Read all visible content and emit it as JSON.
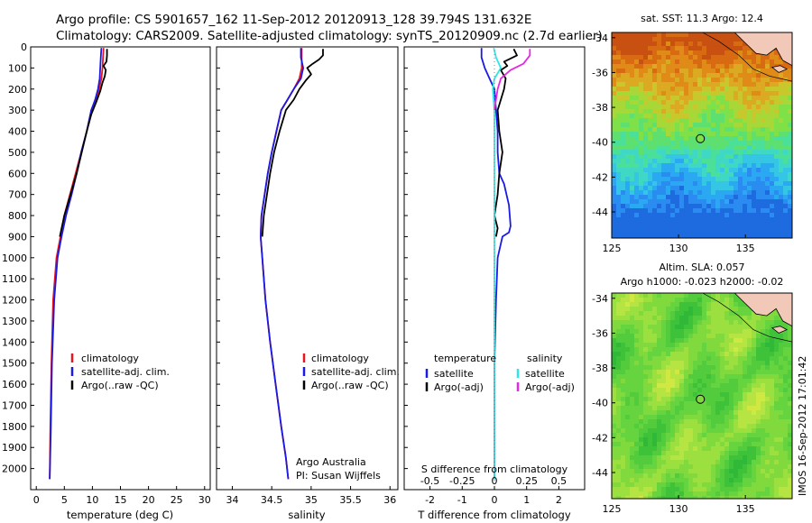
{
  "header": {
    "line1": "Argo profile: CS 5901657_162 11-Sep-2012 20120913_128 39.794S 131.632E",
    "line2": "Climatology: CARS2009. Satellite-adjusted climatology: synTS_20120909.nc (2.7d earlier)"
  },
  "watermark": "IMOS 16-Sep-2012 17:01:42",
  "colors": {
    "climatology": "#e8141e",
    "satellite": "#1a1ae6",
    "argo": "#000000",
    "salinity_satellite": "#2ee6e6",
    "salinity_argo": "#e628e6"
  },
  "chart_data": [
    {
      "type": "line",
      "id": "temperature",
      "xlabel": "temperature (deg C)",
      "xlim": [
        -1,
        31
      ],
      "ylim": [
        2100,
        0
      ],
      "xticks": [
        0,
        5,
        10,
        15,
        20,
        25,
        30
      ],
      "yticks": [
        0,
        100,
        200,
        300,
        400,
        500,
        600,
        700,
        800,
        900,
        1000,
        1100,
        1200,
        1300,
        1400,
        1500,
        1600,
        1700,
        1800,
        1900,
        2000
      ],
      "legend": {
        "position": "center-bottom",
        "entries": [
          "climatology",
          "satellite-adj. clim.",
          "Argo(..raw -QC)"
        ]
      },
      "series": [
        {
          "name": "climatology",
          "color": "#e8141e",
          "x": [
            12.0,
            11.9,
            11.8,
            11.6,
            11.2,
            10.6,
            9.8,
            9.0,
            8.0,
            7.0,
            6.0,
            5.0,
            4.3,
            3.6,
            3.0,
            2.7,
            2.5,
            2.4
          ],
          "y": [
            5,
            50,
            100,
            150,
            200,
            250,
            300,
            400,
            500,
            600,
            700,
            800,
            900,
            1000,
            1200,
            1500,
            1800,
            2050
          ]
        },
        {
          "name": "satellite-adj. clim.",
          "color": "#1a1ae6",
          "x": [
            11.6,
            11.5,
            11.4,
            11.3,
            11.0,
            10.5,
            9.8,
            9.0,
            8.0,
            7.2,
            6.3,
            5.3,
            4.5,
            3.8,
            3.2,
            2.8,
            2.6,
            2.4
          ],
          "y": [
            5,
            50,
            100,
            150,
            200,
            250,
            300,
            400,
            500,
            600,
            700,
            800,
            900,
            1000,
            1200,
            1500,
            1800,
            2050
          ]
        },
        {
          "name": "Argo(..raw -QC)",
          "color": "#000000",
          "x": [
            12.6,
            12.6,
            12.5,
            12.0,
            12.4,
            12.2,
            11.8,
            11.4,
            10.7,
            9.8,
            9.0,
            8.1,
            7.2,
            6.1,
            5.0,
            4.2
          ],
          "y": [
            10,
            40,
            70,
            90,
            110,
            140,
            170,
            210,
            260,
            320,
            400,
            500,
            600,
            700,
            800,
            900
          ]
        }
      ]
    },
    {
      "type": "line",
      "id": "salinity",
      "xlabel": "salinity",
      "xlim": [
        33.8,
        36.1
      ],
      "ylim": [
        2100,
        0
      ],
      "xticks": [
        34,
        34.5,
        35,
        35.5,
        36
      ],
      "xticklabels": [
        "34",
        "34.5",
        "35",
        "35.5",
        "36"
      ],
      "legend": {
        "position": "center-bottom",
        "entries": [
          "climatology",
          "satellite-adj. clim.",
          "Argo(..raw -QC)"
        ]
      },
      "annotation": [
        "Argo Australia",
        "PI: Susan Wijffels"
      ],
      "series": [
        {
          "name": "climatology",
          "color": "#e8141e",
          "x": [
            34.88,
            34.88,
            34.88,
            34.85,
            34.78,
            34.7,
            34.62,
            34.56,
            34.5,
            34.45,
            34.41,
            34.37,
            34.36,
            34.38,
            34.42,
            34.48,
            34.55,
            34.62,
            34.68,
            34.71
          ],
          "y": [
            5,
            50,
            100,
            150,
            200,
            250,
            300,
            400,
            500,
            600,
            700,
            800,
            900,
            1000,
            1200,
            1400,
            1600,
            1800,
            1950,
            2050
          ]
        },
        {
          "name": "satellite-adj. clim.",
          "color": "#1a1ae6",
          "x": [
            34.87,
            34.87,
            34.9,
            34.87,
            34.78,
            34.7,
            34.62,
            34.56,
            34.5,
            34.45,
            34.41,
            34.37,
            34.36,
            34.38,
            34.42,
            34.48,
            34.55,
            34.62,
            34.68,
            34.71
          ],
          "y": [
            5,
            50,
            100,
            150,
            200,
            250,
            300,
            400,
            500,
            600,
            700,
            800,
            900,
            1000,
            1200,
            1400,
            1600,
            1800,
            1950,
            2050
          ]
        },
        {
          "name": "Argo(..raw -QC)",
          "color": "#000000",
          "x": [
            35.15,
            35.15,
            35.1,
            35.02,
            34.95,
            35.0,
            34.93,
            34.85,
            34.78,
            34.68,
            34.6,
            34.53,
            34.48,
            34.44,
            34.4,
            34.38
          ],
          "y": [
            10,
            40,
            60,
            80,
            100,
            130,
            160,
            200,
            250,
            300,
            400,
            500,
            600,
            700,
            800,
            900
          ]
        }
      ]
    },
    {
      "type": "line",
      "id": "difference",
      "xlabel_bottom": "T difference from climatology",
      "xlabel_top": "S difference from climatology",
      "xlim": [
        -2.8,
        2.8
      ],
      "ylim": [
        2100,
        0
      ],
      "xticks_T": [
        -2,
        -1,
        0,
        1,
        2
      ],
      "xticklabels_S": [
        "-0.5",
        "-0.25",
        "0",
        "0.25",
        "0.5"
      ],
      "xticks_S_positions": [
        -2,
        -1,
        0,
        1,
        2
      ],
      "legend": {
        "position": "center-bottom",
        "temperature_header": "temperature",
        "salinity_header": "salinity",
        "temperature_entries": [
          "satellite",
          "Argo(-adj)"
        ],
        "salinity_entries": [
          "satellite",
          "Argo(-adj)"
        ]
      },
      "series": [
        {
          "name": "temperature satellite",
          "color": "#1a1ae6",
          "x": [
            -0.4,
            -0.4,
            -0.3,
            -0.15,
            0.0,
            0.05,
            0.1,
            0.1,
            0.15,
            0.3,
            0.45,
            0.5,
            0.45,
            0.25,
            0.1,
            0.05,
            0.0,
            0.0
          ],
          "y": [
            5,
            50,
            100,
            150,
            200,
            300,
            400,
            500,
            600,
            650,
            750,
            850,
            880,
            900,
            1000,
            1200,
            1500,
            2050
          ]
        },
        {
          "name": "temperature Argo(-adj)",
          "color": "#000000",
          "x": [
            0.6,
            0.7,
            0.3,
            0.4,
            0.2,
            0.35,
            0.3,
            0.1,
            0.15,
            0.25,
            0.15,
            0.1,
            0.0,
            0.1,
            0.05
          ],
          "y": [
            10,
            40,
            70,
            90,
            110,
            150,
            200,
            300,
            400,
            500,
            600,
            700,
            800,
            860,
            900
          ]
        },
        {
          "name": "salinity satellite",
          "color": "#2ee6e6",
          "x": [
            -0.02,
            0.05,
            0.2,
            0.0,
            -0.05,
            0.0,
            0.0,
            0.0,
            0.0,
            0.0,
            0.0
          ],
          "y": [
            5,
            50,
            100,
            150,
            200,
            300,
            600,
            900,
            1200,
            1600,
            2050
          ]
        },
        {
          "name": "salinity Argo(-adj)",
          "color": "#e628e6",
          "x": [
            1.1,
            1.1,
            0.9,
            0.5,
            0.2,
            0.1,
            0.0
          ],
          "y": [
            10,
            40,
            80,
            110,
            150,
            200,
            300
          ]
        }
      ]
    },
    {
      "type": "heatmap",
      "id": "sst_map",
      "title": "sat. SST: 11.3 Argo: 12.4",
      "xlim": [
        125,
        138.5
      ],
      "ylim": [
        -45.5,
        -33.7
      ],
      "xticks": [
        125,
        130,
        135
      ],
      "yticks": [
        -34,
        -36,
        -38,
        -40,
        -42,
        -44
      ],
      "argo_position": {
        "lon": 131.632,
        "lat": -39.794
      }
    },
    {
      "type": "heatmap",
      "id": "sla_map",
      "title_line1": "Altim. SLA: 0.057",
      "title_line2": "Argo h1000: -0.023 h2000: -0.02",
      "xlim": [
        125,
        138.5
      ],
      "ylim": [
        -45.5,
        -33.7
      ],
      "xticks": [
        125,
        130,
        135
      ],
      "yticks": [
        -34,
        -36,
        -38,
        -40,
        -42,
        -44
      ],
      "argo_position": {
        "lon": 131.632,
        "lat": -39.794
      }
    }
  ]
}
